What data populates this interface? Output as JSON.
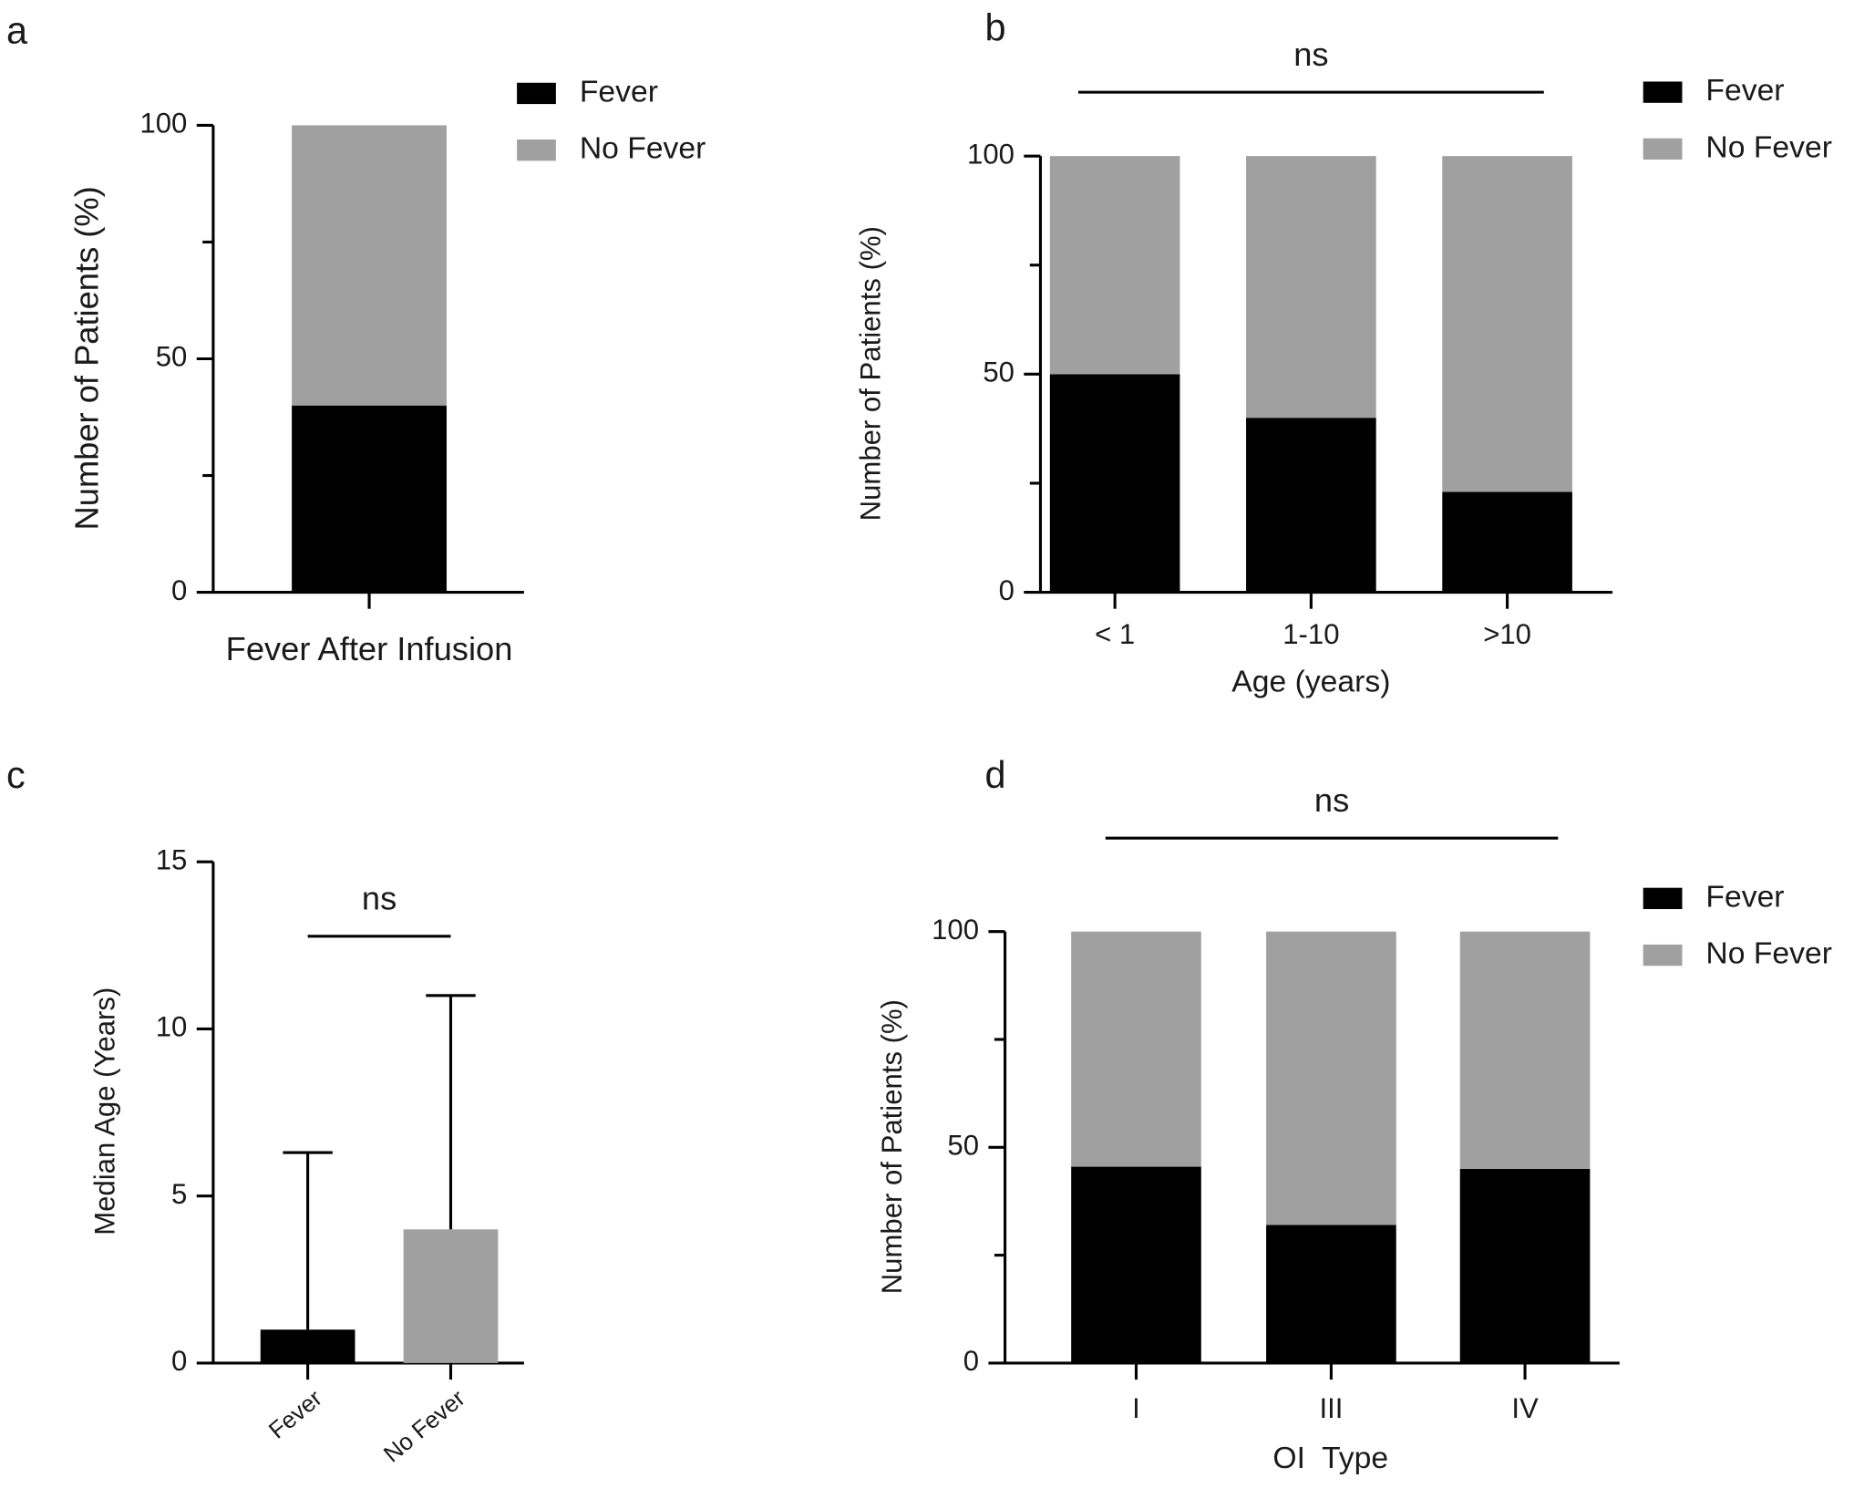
{
  "chart_data": [
    {
      "type": "stacked_bar",
      "panel": "a",
      "ylabel": "Number of Patients (%)",
      "categories": [
        "Fever After Infusion"
      ],
      "series": [
        {
          "name": "Fever",
          "color": "#000000",
          "values": [
            40
          ]
        },
        {
          "name": "No Fever",
          "color": "#a0a0a0",
          "values": [
            60
          ]
        }
      ],
      "ylim": [
        0,
        100
      ],
      "yticks": [
        0,
        50,
        100
      ],
      "minor_yticks": [
        25,
        75
      ],
      "legend": "top right"
    },
    {
      "type": "stacked_bar",
      "panel": "b",
      "ylabel": "Number of Patients (%)",
      "xlabel": "Age (years)",
      "annotation": "ns",
      "categories": [
        "< 1",
        "1-10",
        ">10"
      ],
      "series": [
        {
          "name": "Fever",
          "color": "#000000",
          "values": [
            50,
            40,
            23
          ]
        },
        {
          "name": "No Fever",
          "color": "#a0a0a0",
          "values": [
            50,
            60,
            77
          ]
        }
      ],
      "ylim": [
        0,
        100
      ],
      "yticks": [
        0,
        50,
        100
      ],
      "minor_yticks": [
        25,
        75
      ],
      "legend": "top right"
    },
    {
      "type": "bar",
      "panel": "c",
      "ylabel": "Median Age (Years)",
      "annotation": "ns",
      "categories": [
        "Fever",
        "No Fever"
      ],
      "values": [
        1,
        4
      ],
      "errors": [
        5.3,
        7
      ],
      "colors": [
        "#000000",
        "#a0a0a0"
      ],
      "ylim": [
        0,
        15
      ],
      "yticks": [
        0,
        5,
        10,
        15
      ]
    },
    {
      "type": "stacked_bar",
      "panel": "d",
      "ylabel": "Number of Patients (%)",
      "xlabel": "OI  Type",
      "annotation": "ns",
      "categories": [
        "I",
        "III",
        "IV"
      ],
      "series": [
        {
          "name": "Fever",
          "color": "#000000",
          "values": [
            45.5,
            32,
            45
          ]
        },
        {
          "name": "No Fever",
          "color": "#a0a0a0",
          "values": [
            54.5,
            68,
            55
          ]
        }
      ],
      "ylim": [
        0,
        100
      ],
      "yticks": [
        0,
        50,
        100
      ],
      "minor_yticks": [
        25,
        75
      ],
      "legend": "top right"
    }
  ]
}
